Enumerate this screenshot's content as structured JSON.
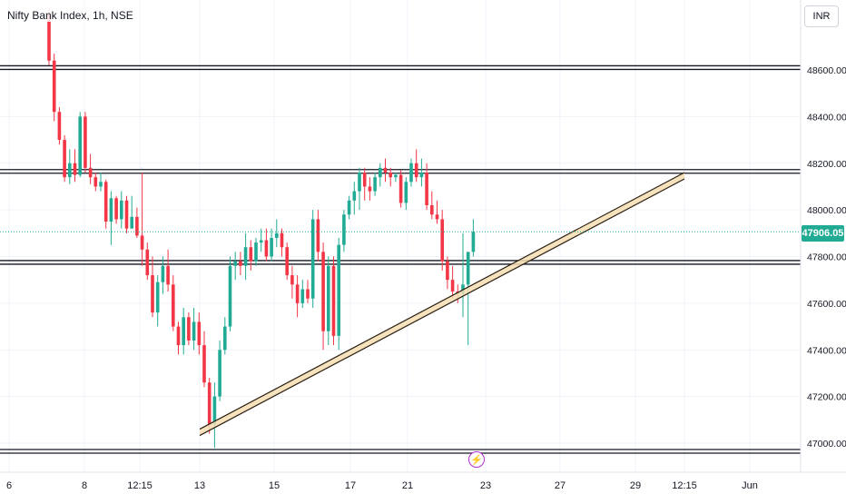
{
  "header": {
    "symbol_title": "Nifty Bank Index, 1h, NSE"
  },
  "toolbar": {
    "currency": "INR"
  },
  "last_price_label": "47906.05",
  "event_icon": "lightning-icon",
  "colors": {
    "up": "#22ab94",
    "down": "#f23645",
    "trend_fill": "#f5deb3",
    "grid": "#f0f3fa",
    "last_price": "#22ab94",
    "event": "#b02fd1"
  },
  "chart_data": {
    "type": "candlestick",
    "title": "Nifty Bank Index, 1h, NSE",
    "y_axis": {
      "ticks": [
        47000,
        47200,
        47400,
        47600,
        47800,
        48000,
        48200,
        48400,
        48600
      ],
      "tick_labels": [
        "47000.00",
        "47200.00",
        "47400.00",
        "47600.00",
        "47800.00",
        "48000.00",
        "48200.00",
        "48400.00",
        "48600.00"
      ],
      "position": "right"
    },
    "x_axis": {
      "tick_labels": [
        "6",
        "8",
        "12:15",
        "13",
        "15",
        "17",
        "21",
        "23",
        "27",
        "29",
        "12:15",
        "Jun"
      ]
    },
    "last_price": 47906.05,
    "horizontal_levels": [
      48610,
      48165,
      47775,
      46965
    ],
    "trendline": {
      "start": {
        "bar": 0.5,
        "price": 47060
      },
      "end": {
        "bar": 88.5,
        "price": 48160
      }
    },
    "candles": [
      [
        48840,
        48860,
        48620,
        48640
      ],
      [
        48640,
        48670,
        48380,
        48420
      ],
      [
        48420,
        48440,
        48280,
        48300
      ],
      [
        48300,
        48320,
        48120,
        48140
      ],
      [
        48140,
        48260,
        48110,
        48200
      ],
      [
        48200,
        48260,
        48120,
        48150
      ],
      [
        48150,
        48420,
        48140,
        48400
      ],
      [
        48400,
        48420,
        48160,
        48180
      ],
      [
        48180,
        48240,
        48110,
        48140
      ],
      [
        48140,
        48160,
        48080,
        48100
      ],
      [
        48100,
        48160,
        48080,
        48120
      ],
      [
        48120,
        48130,
        47920,
        47950
      ],
      [
        47950,
        48080,
        47850,
        48050
      ],
      [
        48050,
        48060,
        47940,
        47960
      ],
      [
        47960,
        48080,
        47920,
        48040
      ],
      [
        48040,
        48060,
        47900,
        47920
      ],
      [
        47920,
        48060,
        47920,
        47970
      ],
      [
        47970,
        48010,
        47880,
        47890
      ],
      [
        47890,
        48160,
        47760,
        47830
      ],
      [
        47830,
        47860,
        47700,
        47720
      ],
      [
        47720,
        47800,
        47540,
        47560
      ],
      [
        47560,
        47720,
        47500,
        47690
      ],
      [
        47690,
        47800,
        47640,
        47760
      ],
      [
        47760,
        47830,
        47650,
        47680
      ],
      [
        47680,
        47720,
        47480,
        47500
      ],
      [
        47500,
        47520,
        47380,
        47420
      ],
      [
        47420,
        47580,
        47380,
        47540
      ],
      [
        47540,
        47560,
        47420,
        47440
      ],
      [
        47440,
        47580,
        47400,
        47520
      ],
      [
        47520,
        47560,
        47380,
        47420
      ],
      [
        47420,
        47480,
        47240,
        47260
      ],
      [
        47260,
        47280,
        47040,
        47080
      ],
      [
        47080,
        47260,
        46980,
        47200
      ],
      [
        47200,
        47440,
        47180,
        47400
      ],
      [
        47400,
        47540,
        47380,
        47500
      ],
      [
        47500,
        47800,
        47480,
        47760
      ],
      [
        47760,
        47820,
        47700,
        47780
      ],
      [
        47780,
        47820,
        47720,
        47760
      ],
      [
        47760,
        47900,
        47700,
        47840
      ],
      [
        47840,
        47870,
        47740,
        47780
      ],
      [
        47780,
        47880,
        47760,
        47860
      ],
      [
        47860,
        47920,
        47820,
        47870
      ],
      [
        47870,
        47920,
        47780,
        47800
      ],
      [
        47800,
        47920,
        47780,
        47880
      ],
      [
        47880,
        47960,
        47840,
        47900
      ],
      [
        47900,
        47920,
        47800,
        47840
      ],
      [
        47840,
        47860,
        47700,
        47720
      ],
      [
        47720,
        47760,
        47620,
        47680
      ],
      [
        47680,
        47720,
        47540,
        47600
      ],
      [
        47600,
        47700,
        47580,
        47660
      ],
      [
        47660,
        47700,
        47600,
        47620
      ],
      [
        47620,
        48000,
        47580,
        47960
      ],
      [
        47960,
        48000,
        47780,
        47820
      ],
      [
        47820,
        47860,
        47400,
        47480
      ],
      [
        47480,
        47800,
        47420,
        47760
      ],
      [
        47760,
        47800,
        47420,
        47460
      ],
      [
        47460,
        47880,
        47400,
        47850
      ],
      [
        47850,
        48000,
        47820,
        47980
      ],
      [
        47980,
        48060,
        47960,
        48040
      ],
      [
        48040,
        48120,
        47980,
        48080
      ],
      [
        48080,
        48180,
        48000,
        48160
      ],
      [
        48160,
        48180,
        48040,
        48100
      ],
      [
        48100,
        48140,
        48040,
        48080
      ],
      [
        48080,
        48160,
        48060,
        48140
      ],
      [
        48140,
        48200,
        48100,
        48180
      ],
      [
        48180,
        48220,
        48120,
        48160
      ],
      [
        48160,
        48180,
        48100,
        48140
      ],
      [
        48140,
        48160,
        48120,
        48150
      ],
      [
        48150,
        48170,
        48010,
        48030
      ],
      [
        48030,
        48140,
        48000,
        48120
      ],
      [
        48120,
        48220,
        48100,
        48200
      ],
      [
        48200,
        48260,
        48120,
        48140
      ],
      [
        48140,
        48220,
        48100,
        48160
      ],
      [
        48160,
        48200,
        48000,
        48020
      ],
      [
        48020,
        48080,
        47960,
        47980
      ],
      [
        47980,
        48040,
        47940,
        47960
      ],
      [
        47960,
        48000,
        47740,
        47780
      ],
      [
        47780,
        47800,
        47660,
        47700
      ],
      [
        47700,
        47760,
        47620,
        47650
      ],
      [
        47650,
        47680,
        47600,
        47640
      ],
      [
        47640,
        47900,
        47540,
        47680
      ],
      [
        47680,
        47820,
        47420,
        47820
      ],
      [
        47820,
        47960,
        47800,
        47906
      ]
    ]
  }
}
